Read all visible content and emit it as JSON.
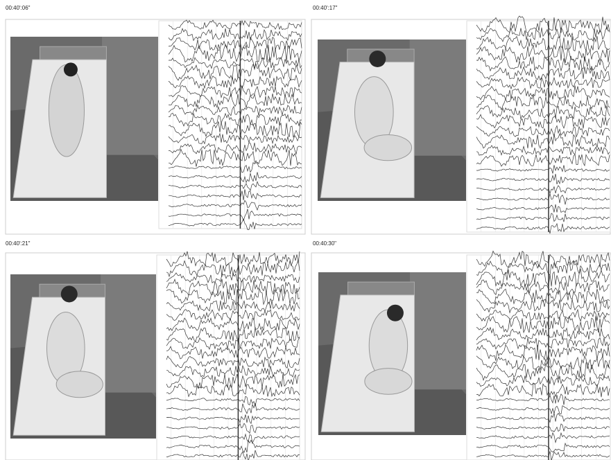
{
  "panels": [
    {
      "timestamp": "00:40':06\""
    },
    {
      "timestamp": "00:40':17\""
    },
    {
      "timestamp": "00:40':21\""
    },
    {
      "timestamp": "00:40:30\""
    }
  ]
}
